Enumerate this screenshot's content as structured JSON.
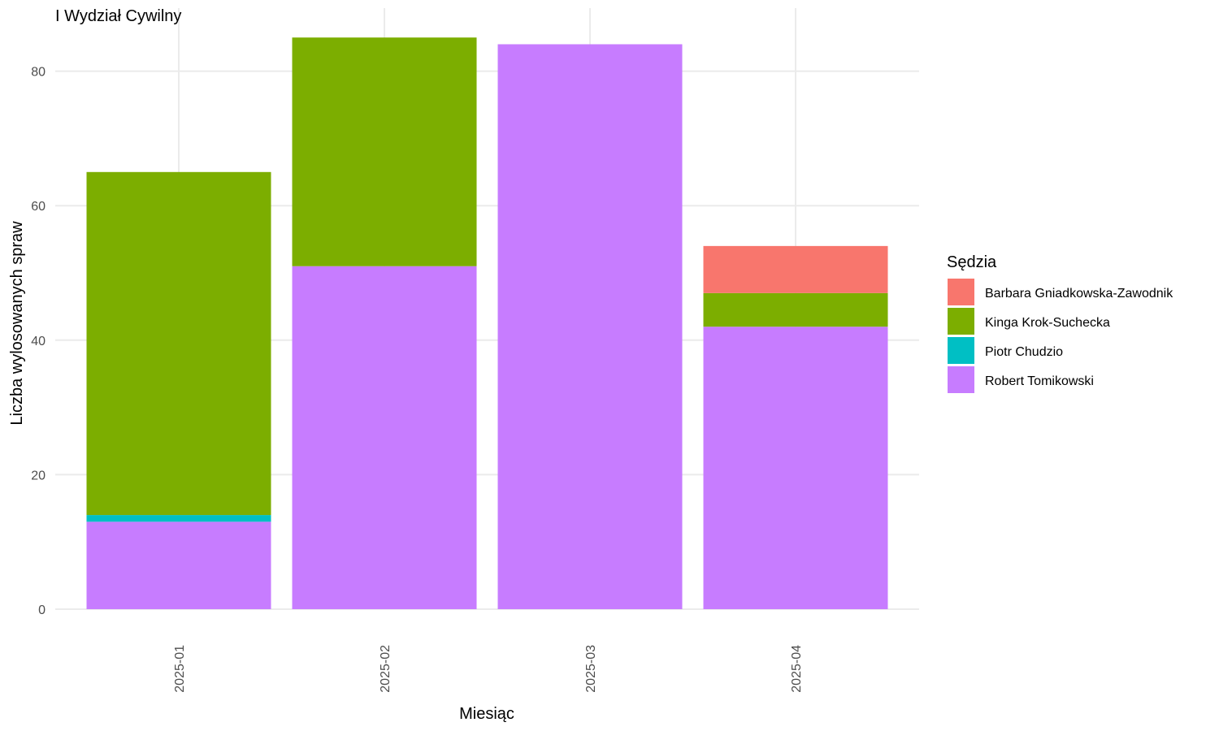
{
  "chart_data": {
    "type": "bar",
    "stacked": true,
    "title": "I Wydział Cywilny",
    "xlabel": "Miesiąc",
    "ylabel": "Liczba wylosowanych spraw",
    "ylim": [
      0,
      88
    ],
    "yticks": [
      0,
      20,
      40,
      60,
      80
    ],
    "categories": [
      "2025-01",
      "2025-02",
      "2025-03",
      "2025-04"
    ],
    "legend": {
      "title": "Sędzia",
      "position": "right"
    },
    "grid": true,
    "series": [
      {
        "name": "Robert Tomikowski",
        "color": "#C77CFF",
        "values": [
          13,
          51,
          84,
          42
        ]
      },
      {
        "name": "Piotr Chudzio",
        "color": "#00BFC4",
        "values": [
          1,
          0,
          0,
          0
        ]
      },
      {
        "name": "Kinga Krok-Suchecka",
        "color": "#7CAE00",
        "values": [
          51,
          34,
          0,
          5
        ]
      },
      {
        "name": "Barbara Gniadkowska-Zawodnik",
        "color": "#F8766D",
        "values": [
          0,
          0,
          0,
          7
        ]
      }
    ],
    "legend_order": [
      "Barbara Gniadkowska-Zawodnik",
      "Kinga Krok-Suchecka",
      "Piotr Chudzio",
      "Robert Tomikowski"
    ]
  }
}
